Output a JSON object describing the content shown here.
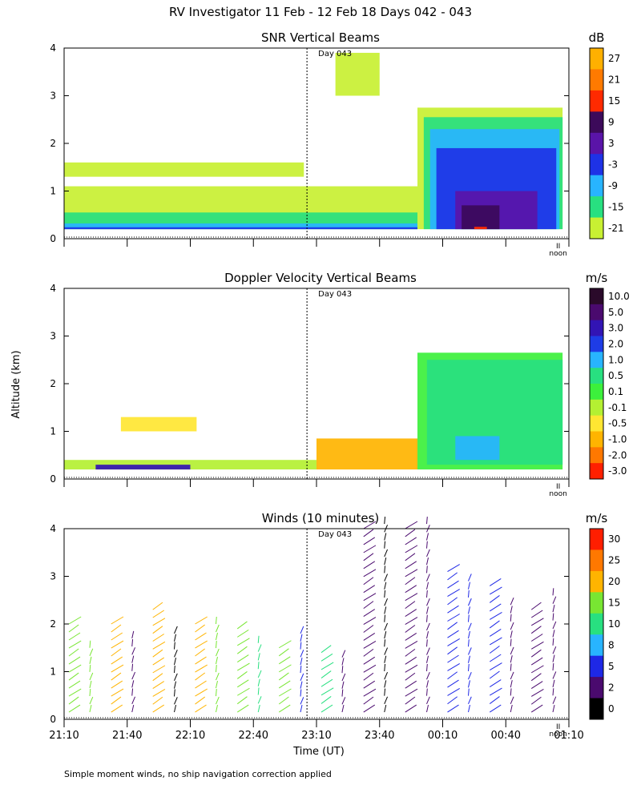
{
  "title": "RV Investigator  11 Feb - 12 Feb 18 Days 042 - 043",
  "y_axis_label": "Altitude (km)",
  "x_axis_label": "Time (UT)",
  "footnote": "Simple moment winds, no ship navigation correction applied",
  "noon_label": "noon",
  "noon_marker": "II",
  "day_marker_label": "Day 043",
  "x_ticks": [
    "21:10",
    "21:40",
    "22:10",
    "22:40",
    "23:10",
    "23:40",
    "00:10",
    "00:40",
    "01:10"
  ],
  "y_ticks": [
    "0",
    "1",
    "2",
    "3",
    "4"
  ],
  "chart_data": [
    {
      "type": "heatmap",
      "title": "SNR Vertical Beams",
      "unit": "dB",
      "ylim": [
        0,
        4
      ],
      "colorbar_ticks": [
        "27",
        "21",
        "15",
        "9",
        "3",
        "-3",
        "-9",
        "-15",
        "-21"
      ],
      "colorbar_colors": [
        "#ffb000",
        "#ff7a00",
        "#ff2a00",
        "#3c0a5a",
        "#5a14a8",
        "#1e32e6",
        "#28b4ff",
        "#28e080",
        "#c8f032"
      ],
      "regions": [
        {
          "t0": 0,
          "t1": 5.6,
          "z0": 0.2,
          "z1": 1.1,
          "level": "-21"
        },
        {
          "t0": 0,
          "t1": 5.6,
          "z0": 0.2,
          "z1": 0.55,
          "level": "-15"
        },
        {
          "t0": 0,
          "t1": 5.6,
          "z0": 0.2,
          "z1": 0.32,
          "level": "-9"
        },
        {
          "t0": 0,
          "t1": 5.6,
          "z0": 0.2,
          "z1": 0.24,
          "level": "-3"
        },
        {
          "t0": 0,
          "t1": 3.8,
          "z0": 1.3,
          "z1": 1.6,
          "level": "-21"
        },
        {
          "t0": 4.3,
          "t1": 5.0,
          "z0": 3.0,
          "z1": 3.9,
          "level": "-21"
        },
        {
          "t0": 5.6,
          "t1": 7.9,
          "z0": 0.2,
          "z1": 2.75,
          "level": "-21"
        },
        {
          "t0": 5.7,
          "t1": 7.9,
          "z0": 0.2,
          "z1": 2.55,
          "level": "-15"
        },
        {
          "t0": 5.8,
          "t1": 7.85,
          "z0": 0.2,
          "z1": 2.3,
          "level": "-9"
        },
        {
          "t0": 5.9,
          "t1": 7.8,
          "z0": 0.2,
          "z1": 1.9,
          "level": "-3"
        },
        {
          "t0": 6.2,
          "t1": 7.5,
          "z0": 0.2,
          "z1": 1.0,
          "level": "3"
        },
        {
          "t0": 6.3,
          "t1": 6.9,
          "z0": 0.2,
          "z1": 0.7,
          "level": "9"
        },
        {
          "t0": 6.5,
          "t1": 6.7,
          "z0": 0.2,
          "z1": 0.25,
          "level": "15"
        }
      ]
    },
    {
      "type": "heatmap",
      "title": "Doppler Velocity Vertical Beams",
      "unit": "m/s",
      "ylim": [
        0,
        4
      ],
      "colorbar_ticks": [
        "10.0",
        "5.0",
        "3.0",
        "2.0",
        "1.0",
        "0.5",
        "0.1",
        "-0.1",
        "-0.5",
        "-1.0",
        "-2.0",
        "-3.0"
      ],
      "colorbar_colors": [
        "#2a0a2a",
        "#4a0a6e",
        "#3214b4",
        "#1e3ce6",
        "#28b4ff",
        "#28e080",
        "#3cf03c",
        "#b4f032",
        "#ffe632",
        "#ffb400",
        "#ff7800",
        "#ff2000"
      ],
      "regions": [
        {
          "t0": 0,
          "t1": 4.0,
          "z0": 0.2,
          "z1": 0.4,
          "level": "-0.1"
        },
        {
          "t0": 0.5,
          "t1": 2.0,
          "z0": 0.2,
          "z1": 0.3,
          "level": "3.0"
        },
        {
          "t0": 0.9,
          "t1": 2.1,
          "z0": 1.0,
          "z1": 1.3,
          "level": "-0.5"
        },
        {
          "t0": 4.0,
          "t1": 5.6,
          "z0": 0.2,
          "z1": 0.85,
          "level": "-1.0"
        },
        {
          "t0": 5.6,
          "t1": 7.9,
          "z0": 0.2,
          "z1": 2.65,
          "level": "0.1"
        },
        {
          "t0": 5.75,
          "t1": 7.9,
          "z0": 0.3,
          "z1": 2.5,
          "level": "0.5"
        },
        {
          "t0": 6.2,
          "t1": 6.9,
          "z0": 0.4,
          "z1": 0.9,
          "level": "1.0"
        }
      ]
    },
    {
      "type": "wind_barbs",
      "title": "Winds (10 minutes)",
      "unit": "m/s",
      "ylim": [
        0,
        4
      ],
      "colorbar_ticks": [
        "30",
        "25",
        "20",
        "15",
        "10",
        "8",
        "5",
        "2",
        "0"
      ],
      "colorbar_colors": [
        "#ff1e00",
        "#ff7800",
        "#ffb400",
        "#78e632",
        "#28e080",
        "#28b4ff",
        "#1e28e6",
        "#4a0a6e",
        "#000000"
      ],
      "profiles_hours": [
        0,
        0.33,
        0.67,
        1.0,
        1.33,
        1.67,
        2.0,
        2.33,
        2.67,
        3.0,
        3.33,
        3.67,
        4.0,
        4.33,
        4.67,
        5.0,
        5.33,
        5.67,
        6.0,
        6.33,
        6.67,
        7.0,
        7.33,
        7.67
      ],
      "profile_tops_km": [
        2.0,
        1.5,
        2.0,
        1.7,
        2.3,
        1.8,
        2.0,
        2.0,
        1.9,
        1.6,
        1.5,
        1.8,
        1.4,
        1.3,
        4.0,
        4.1,
        4.0,
        4.1,
        3.1,
        2.9,
        2.8,
        2.4,
        2.3,
        2.6
      ],
      "profile_speed_levels": [
        "15",
        "15",
        "20",
        "2",
        "20",
        "0",
        "20",
        "15",
        "15",
        "10",
        "15",
        "5",
        "10",
        "2",
        "2",
        "0",
        "2",
        "2",
        "5",
        "5",
        "5",
        "2",
        "2",
        "2"
      ]
    }
  ]
}
